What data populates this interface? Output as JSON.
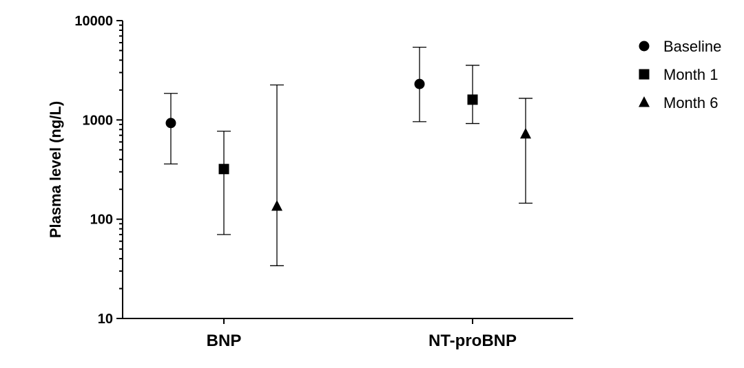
{
  "chart_data": {
    "type": "scatter",
    "ylabel": "Plasma level (ng/L)",
    "yscale": "log",
    "ylim": [
      10,
      10000
    ],
    "yticks": [
      10,
      100,
      1000,
      10000
    ],
    "ytick_labels": [
      "10",
      "100",
      "1000",
      "10000"
    ],
    "categories": [
      "BNP",
      "NT-proBNP"
    ],
    "legend_position": "top-right",
    "series": [
      {
        "name": "Baseline",
        "marker": "circle",
        "values": [
          930,
          2300
        ],
        "lower": [
          360,
          960
        ],
        "upper": [
          1850,
          5400
        ]
      },
      {
        "name": "Month 1",
        "marker": "square",
        "values": [
          320,
          1600
        ],
        "lower": [
          70,
          920
        ],
        "upper": [
          770,
          3550
        ]
      },
      {
        "name": "Month 6",
        "marker": "triangle",
        "values": [
          135,
          720
        ],
        "lower": [
          34,
          145
        ],
        "upper": [
          2250,
          1650
        ]
      }
    ]
  }
}
